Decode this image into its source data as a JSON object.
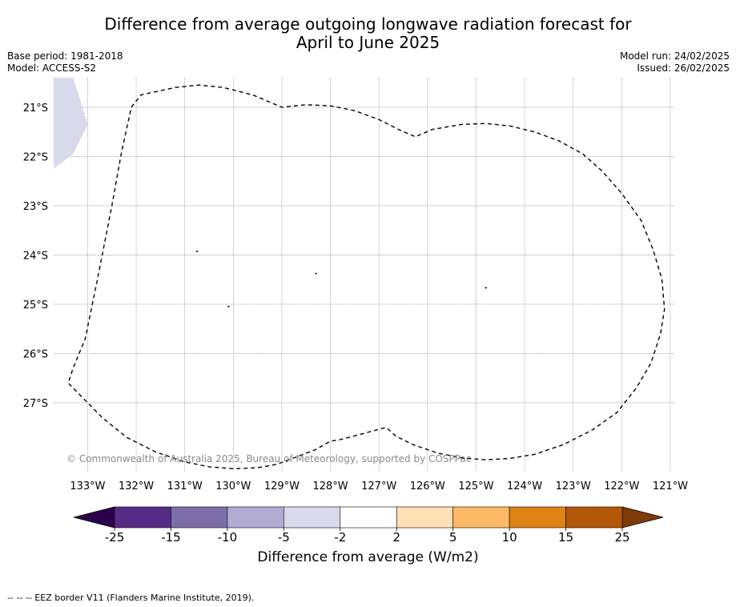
{
  "title_line1": "Difference from average outgoing longwave radiation forecast for",
  "title_line2": "April to June 2025",
  "base_period": "Base period: 1981-2018",
  "model": "Model: ACCESS-S2",
  "model_run": "Model run: 24/02/2025",
  "issued": "Issued: 26/02/2025",
  "copyright": "© Commonwealth of Australia 2025, Bureau of Meteorology, supported by COSPPac",
  "map": {
    "lon_range": [
      -133.7,
      -120.9
    ],
    "lat_range": [
      -28.4,
      -20.4
    ],
    "lat_ticks": [
      -21,
      -22,
      -23,
      -24,
      -25,
      -26,
      -27
    ],
    "lat_labels": [
      "21°S",
      "22°S",
      "23°S",
      "24°S",
      "25°S",
      "26°S",
      "27°S"
    ],
    "lon_ticks": [
      -133,
      -132,
      -131,
      -130,
      -129,
      -128,
      -127,
      -126,
      -125,
      -124,
      -123,
      -122,
      -121
    ],
    "lon_labels": [
      "133°W",
      "132°W",
      "131°W",
      "130°W",
      "129°W",
      "128°W",
      "127°W",
      "126°W",
      "125°W",
      "124°W",
      "123°W",
      "122°W",
      "121°W"
    ],
    "eez_border_lonlat": [
      [
        -132.1,
        -21.0
      ],
      [
        -131.9,
        -20.75
      ],
      [
        -131.2,
        -20.6
      ],
      [
        -130.7,
        -20.55
      ],
      [
        -130.2,
        -20.6
      ],
      [
        -129.6,
        -20.75
      ],
      [
        -129.0,
        -21.0
      ],
      [
        -128.5,
        -20.95
      ],
      [
        -128.0,
        -20.97
      ],
      [
        -127.5,
        -21.07
      ],
      [
        -127.0,
        -21.25
      ],
      [
        -126.6,
        -21.45
      ],
      [
        -126.25,
        -21.6
      ],
      [
        -125.9,
        -21.45
      ],
      [
        -125.3,
        -21.35
      ],
      [
        -124.8,
        -21.33
      ],
      [
        -124.3,
        -21.38
      ],
      [
        -123.8,
        -21.5
      ],
      [
        -123.3,
        -21.68
      ],
      [
        -122.8,
        -21.95
      ],
      [
        -122.4,
        -22.3
      ],
      [
        -122.0,
        -22.75
      ],
      [
        -121.6,
        -23.3
      ],
      [
        -121.35,
        -23.9
      ],
      [
        -121.17,
        -24.5
      ],
      [
        -121.12,
        -25.1
      ],
      [
        -121.2,
        -25.6
      ],
      [
        -121.4,
        -26.2
      ],
      [
        -121.7,
        -26.7
      ],
      [
        -122.1,
        -27.2
      ],
      [
        -122.6,
        -27.55
      ],
      [
        -123.2,
        -27.85
      ],
      [
        -123.8,
        -28.05
      ],
      [
        -124.3,
        -28.13
      ],
      [
        -124.8,
        -28.16
      ],
      [
        -125.3,
        -28.12
      ],
      [
        -125.8,
        -28.02
      ],
      [
        -126.3,
        -27.85
      ],
      [
        -126.65,
        -27.68
      ],
      [
        -126.85,
        -27.5
      ],
      [
        -127.3,
        -27.62
      ],
      [
        -127.8,
        -27.75
      ],
      [
        -128.0,
        -27.78
      ],
      [
        -128.3,
        -27.95
      ],
      [
        -128.7,
        -28.1
      ],
      [
        -129.1,
        -28.25
      ],
      [
        -129.5,
        -28.32
      ],
      [
        -130.0,
        -28.34
      ],
      [
        -130.5,
        -28.3
      ],
      [
        -131.0,
        -28.2
      ],
      [
        -131.6,
        -28.0
      ],
      [
        -132.2,
        -27.7
      ],
      [
        -132.7,
        -27.3
      ],
      [
        -133.1,
        -26.9
      ],
      [
        -133.4,
        -26.6
      ],
      [
        -133.3,
        -26.3
      ],
      [
        -133.05,
        -25.7
      ],
      [
        -132.8,
        -24.5
      ],
      [
        -132.5,
        -23.0
      ],
      [
        -132.3,
        -21.9
      ],
      [
        -132.1,
        -21.0
      ]
    ],
    "shaded_region_lonlat": [
      [
        -133.7,
        -20.4
      ],
      [
        -133.3,
        -20.4
      ],
      [
        -133.2,
        -20.7
      ],
      [
        -133.0,
        -21.35
      ],
      [
        -133.3,
        -21.95
      ],
      [
        -133.7,
        -22.25
      ]
    ],
    "shaded_category": "-5 to -2",
    "islands_lonlat": [
      [
        -130.75,
        -23.93
      ],
      [
        -128.3,
        -24.38
      ],
      [
        -130.1,
        -25.05
      ],
      [
        -124.8,
        -24.67
      ]
    ]
  },
  "colorbar": {
    "ticks": [
      "-25",
      "-15",
      "-10",
      "-5",
      "-2",
      "2",
      "5",
      "10",
      "15",
      "25"
    ],
    "colors": [
      "#552b86",
      "#7d6eaa",
      "#b1abd3",
      "#d9d9ec",
      "#ffffff",
      "#fee0b6",
      "#fdb863",
      "#e18214",
      "#b35806"
    ],
    "under_color": "#2d004b",
    "over_color": "#7f3b08",
    "label": "Difference from average (W/m2)"
  },
  "footer": "--  --  -- EEZ border V11 (Flanders Marine Institute, 2019)."
}
